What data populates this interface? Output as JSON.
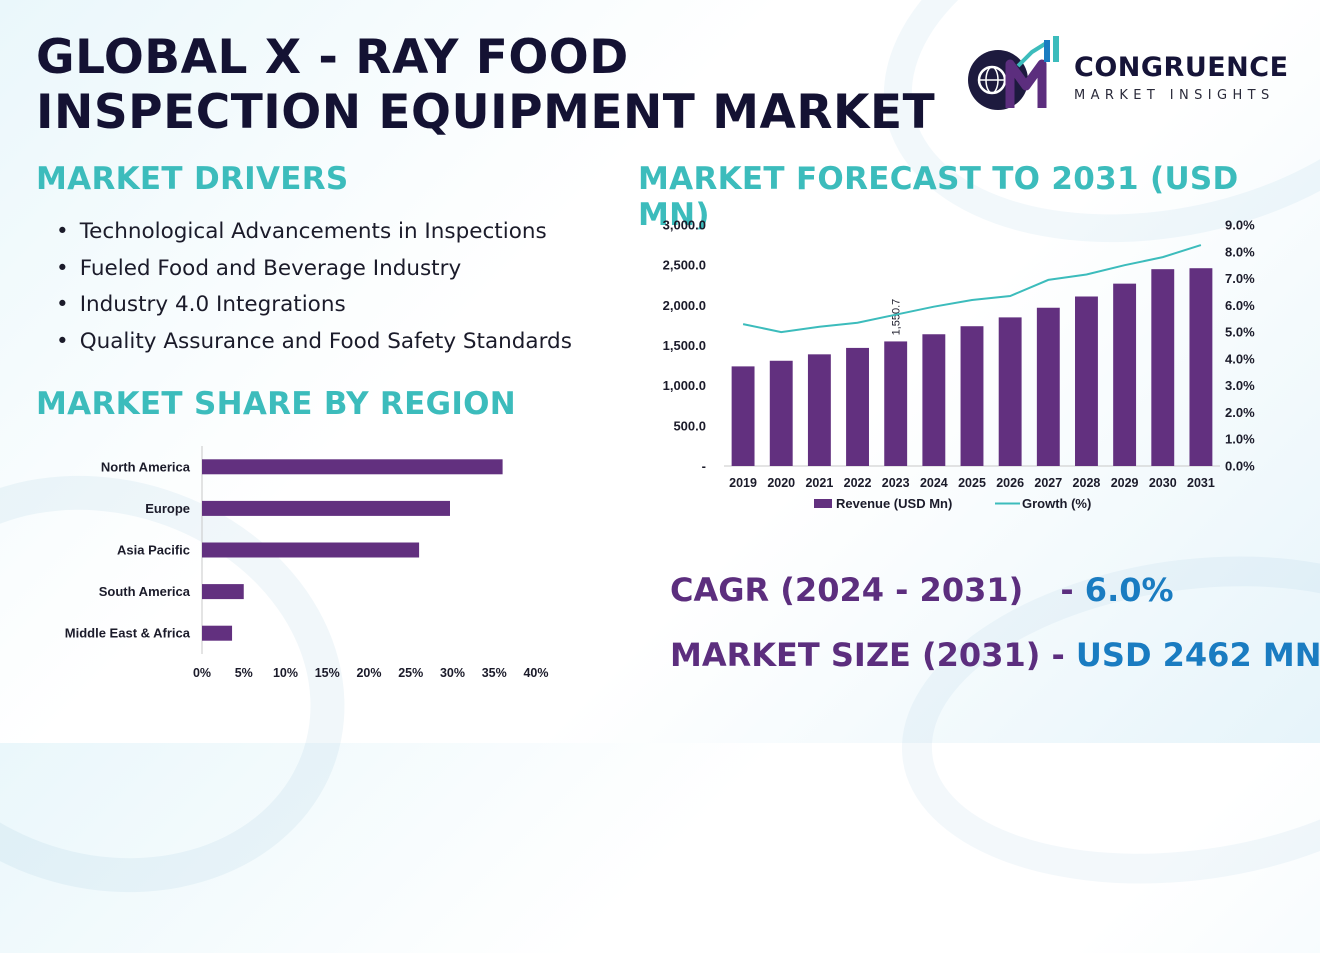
{
  "title": "GLOBAL X - RAY FOOD INSPECTION EQUIPMENT MARKET",
  "logo": {
    "name": "CONGRUENCE",
    "tagline": "MARKET INSIGHTS"
  },
  "drivers": {
    "heading": "MARKET DRIVERS",
    "items": [
      "Technological Advancements in Inspections",
      "Fueled Food and Beverage Industry",
      "Industry 4.0 Integrations",
      "Quality Assurance and Food Safety Standards"
    ]
  },
  "region": {
    "heading": "MARKET SHARE BY REGION"
  },
  "forecast": {
    "heading": "MARKET FORECAST TO 2031 (USD MN)"
  },
  "stats": {
    "cagr_label": "CAGR (2024 - 2031)",
    "cagr_sep": "- ",
    "cagr_value": "6.0%",
    "size_label": "MARKET SIZE (2031)",
    "size_sep": " - ",
    "size_value": "USD 2462 MN"
  },
  "colors": {
    "bar": "#62307f",
    "line": "#3cbcbc",
    "heading": "#3cbcbc",
    "title": "#141233",
    "stat_label": "#5c2e7e",
    "stat_value": "#1a7cc1"
  },
  "chart_data": [
    {
      "type": "bar",
      "orientation": "horizontal",
      "categories": [
        "North America",
        "Europe",
        "Asia Pacific",
        "South America",
        "Middle East & Africa"
      ],
      "values": [
        36,
        29.7,
        26,
        5,
        3.6
      ],
      "unit": "%",
      "xlim": [
        0,
        40
      ],
      "xticks": [
        "0%",
        "5%",
        "10%",
        "15%",
        "20%",
        "25%",
        "30%",
        "35%",
        "40%"
      ],
      "grid": false
    },
    {
      "type": "bar+line",
      "categories": [
        "2019",
        "2020",
        "2021",
        "2022",
        "2023",
        "2024",
        "2025",
        "2026",
        "2027",
        "2028",
        "2029",
        "2030",
        "2031"
      ],
      "series": [
        {
          "name": "Revenue (USD Mn)",
          "type": "bar",
          "axis": "left",
          "values": [
            1240,
            1310,
            1390,
            1470,
            1550.7,
            1640,
            1740,
            1850,
            1970,
            2110,
            2270,
            2450,
            2462
          ]
        },
        {
          "name": "Growth (%)",
          "type": "line",
          "axis": "right",
          "values": [
            5.3,
            5.0,
            5.2,
            5.35,
            5.65,
            5.95,
            6.2,
            6.35,
            6.95,
            7.15,
            7.5,
            7.8,
            8.25
          ]
        }
      ],
      "data_labels": [
        {
          "index": 4,
          "text": "1,550.7"
        }
      ],
      "ylim_left": [
        0,
        3000
      ],
      "yticks_left": [
        "-",
        "500.0",
        "1,000.0",
        "1,500.0",
        "2,000.0",
        "2,500.0",
        "3,000.0"
      ],
      "ylim_right": [
        0,
        9
      ],
      "yticks_right": [
        "0.0%",
        "1.0%",
        "2.0%",
        "3.0%",
        "4.0%",
        "5.0%",
        "6.0%",
        "7.0%",
        "8.0%",
        "9.0%"
      ],
      "legend": "bottom",
      "grid": false
    }
  ]
}
